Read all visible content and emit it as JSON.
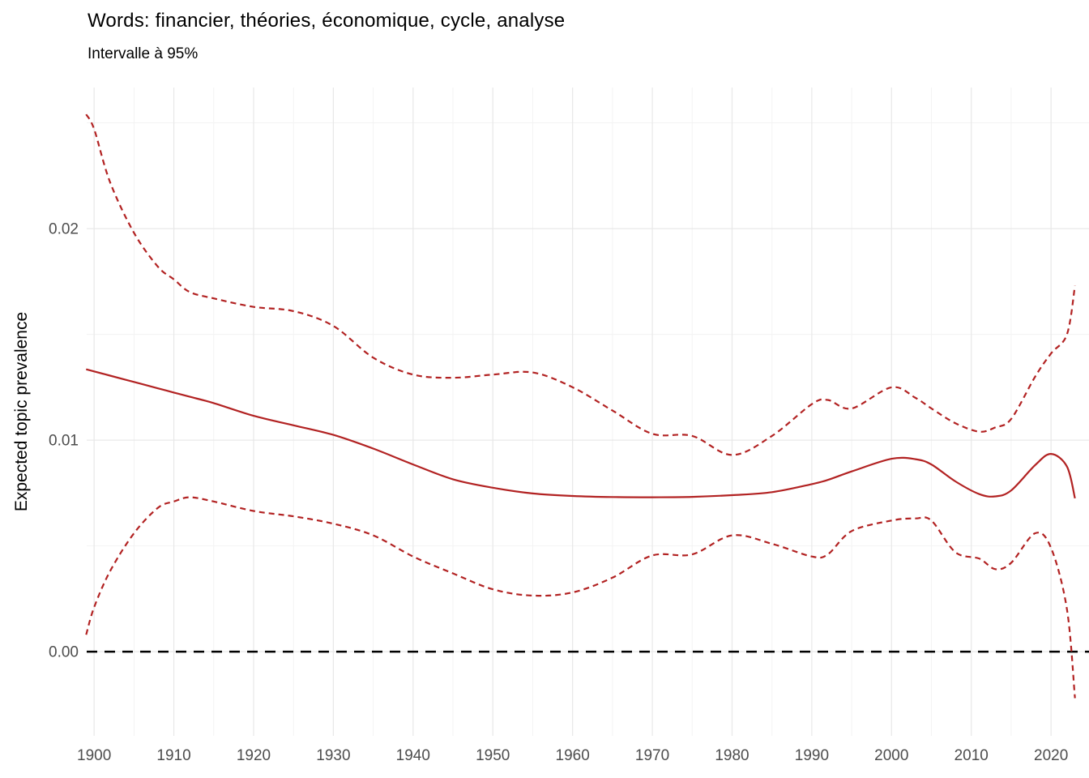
{
  "header": {
    "title": "Words: financier, théories, économique, cycle, analyse",
    "subtitle": "Intervalle à 95%"
  },
  "axes": {
    "y_label": "Expected topic prevalence",
    "x_tick_values": [
      1900,
      1910,
      1920,
      1930,
      1940,
      1950,
      1960,
      1970,
      1980,
      1990,
      2000,
      2010,
      2020
    ],
    "x_tick_labels": [
      "1900",
      "1910",
      "1920",
      "1930",
      "1940",
      "1950",
      "1960",
      "1970",
      "1980",
      "1990",
      "2000",
      "2010",
      "2020"
    ],
    "x_minor_values": [
      1905,
      1915,
      1925,
      1935,
      1945,
      1955,
      1965,
      1975,
      1985,
      1995,
      2005,
      2015
    ],
    "y_tick_values": [
      0.0,
      0.01,
      0.02
    ],
    "y_tick_labels": [
      "0.00",
      "0.01",
      "0.02"
    ],
    "y_minor_values": [
      0.005,
      0.015,
      0.025
    ]
  },
  "chart_data": {
    "type": "line",
    "title": "Words: financier, théories, économique, cycle, analyse",
    "subtitle": "Intervalle à 95%",
    "xlabel": "",
    "ylabel": "Expected topic prevalence",
    "xlim": [
      1899.07,
      2024.76
    ],
    "ylim": [
      -0.00398,
      0.02667
    ],
    "grid": true,
    "legend": false,
    "x": [
      1899,
      1900,
      1902,
      1905,
      1908,
      1910,
      1912,
      1915,
      1920,
      1925,
      1930,
      1935,
      1940,
      1945,
      1950,
      1955,
      1960,
      1965,
      1970,
      1975,
      1980,
      1985,
      1990,
      1992,
      1995,
      2000,
      2003,
      2005,
      2008,
      2011,
      2013,
      2015,
      2018,
      2020,
      2022,
      2023
    ],
    "series": [
      {
        "name": "expected_topic_prevalence",
        "style": "solid",
        "color": "#B22222",
        "values": [
          0.01335,
          0.01325,
          0.01305,
          0.01275,
          0.01245,
          0.01225,
          0.01205,
          0.01175,
          0.01115,
          0.0107,
          0.01025,
          0.0096,
          0.00885,
          0.00815,
          0.00775,
          0.00748,
          0.00736,
          0.00731,
          0.0073,
          0.00732,
          0.0074,
          0.00754,
          0.00792,
          0.00812,
          0.00852,
          0.00912,
          0.0091,
          0.00885,
          0.00805,
          0.00745,
          0.00734,
          0.00762,
          0.00882,
          0.00935,
          0.00875,
          0.00725
        ]
      },
      {
        "name": "ci_upper_95",
        "style": "dashed",
        "color": "#B22222",
        "values": [
          0.0254,
          0.0247,
          0.0222,
          0.0198,
          0.0182,
          0.0176,
          0.017,
          0.0167,
          0.0163,
          0.0161,
          0.0154,
          0.0139,
          0.0131,
          0.01295,
          0.0131,
          0.0132,
          0.0125,
          0.0114,
          0.0103,
          0.0102,
          0.0093,
          0.0102,
          0.0117,
          0.0119,
          0.0115,
          0.0125,
          0.012,
          0.0115,
          0.0108,
          0.0104,
          0.0106,
          0.011,
          0.013,
          0.0141,
          0.015,
          0.0173
        ]
      },
      {
        "name": "ci_lower_95",
        "style": "dashed",
        "color": "#B22222",
        "values": [
          0.0008,
          0.0021,
          0.0038,
          0.0056,
          0.0068,
          0.0071,
          0.0073,
          0.0071,
          0.00665,
          0.0064,
          0.00605,
          0.0055,
          0.0045,
          0.0037,
          0.00295,
          0.00265,
          0.0028,
          0.0035,
          0.00455,
          0.0046,
          0.0055,
          0.0051,
          0.0045,
          0.0046,
          0.0057,
          0.0062,
          0.0063,
          0.0062,
          0.0047,
          0.0044,
          0.0039,
          0.0042,
          0.0056,
          0.0049,
          0.002,
          -0.0022
        ]
      }
    ],
    "reference_line": {
      "y": 0,
      "style": "dashed",
      "color": "#000000"
    }
  },
  "colors": {
    "line": "#B22222",
    "grid_major": "#E8E8E8",
    "grid_minor": "#F3F3F3",
    "tick_text": "#4D4D4D",
    "text": "#000000",
    "background": "#FFFFFF"
  }
}
